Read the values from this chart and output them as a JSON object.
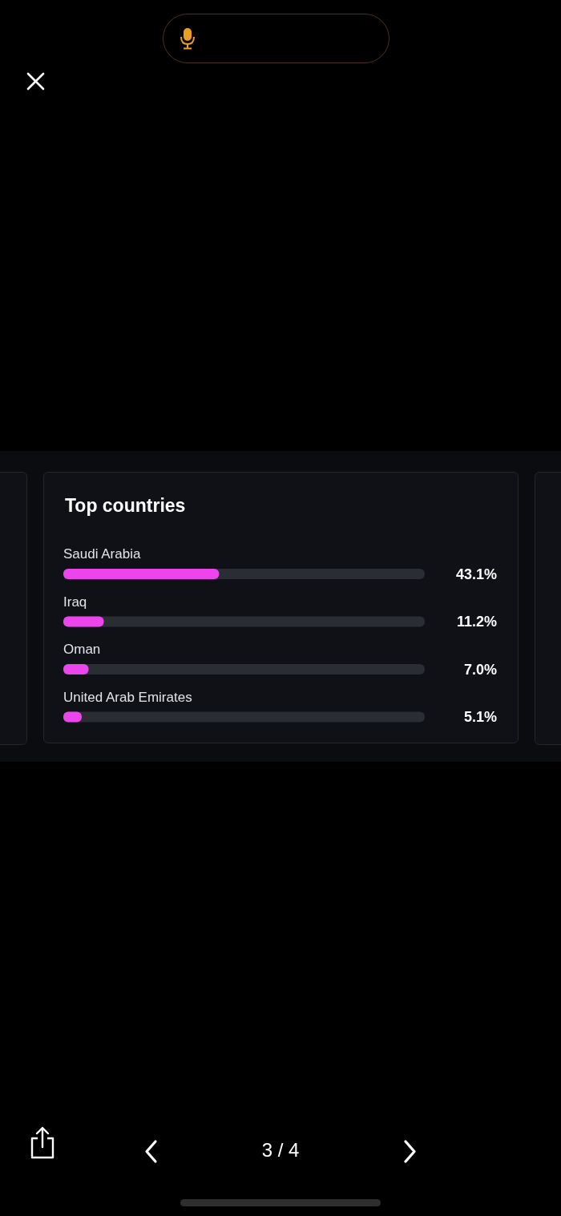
{
  "chart_data": {
    "type": "bar",
    "orientation": "horizontal",
    "title": "Top countries",
    "categories": [
      "Saudi Arabia",
      "Iraq",
      "Oman",
      "United Arab Emirates"
    ],
    "values": [
      43.1,
      11.2,
      7.0,
      5.1
    ],
    "color": "#ec45ec",
    "value_labels": [
      "43.1%",
      "11.2%",
      "7.0%",
      "5.1%"
    ],
    "xlim": [
      0,
      100
    ],
    "tick_labels": "y",
    "annotations": [
      "3 / 4"
    ]
  }
}
